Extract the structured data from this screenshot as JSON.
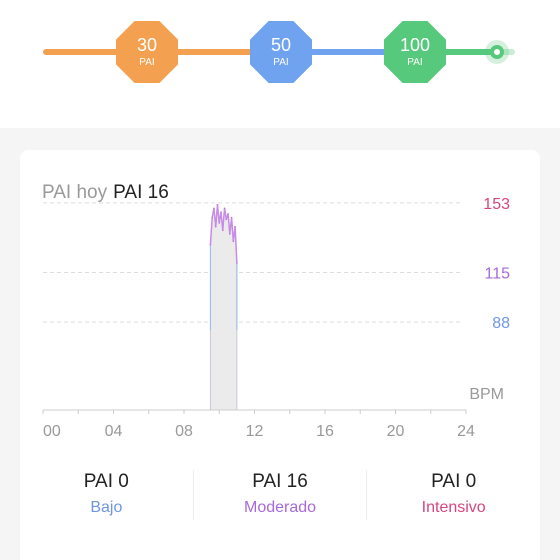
{
  "progress": {
    "milestones": [
      {
        "value": "30",
        "unit": "PAI",
        "color": "#f3a050"
      },
      {
        "value": "50",
        "unit": "PAI",
        "color": "#6fa2ef"
      },
      {
        "value": "100",
        "unit": "PAI",
        "color": "#56c97c"
      }
    ],
    "segment_colors": [
      "#f3a050",
      "#f3a050",
      "#6fa2ef",
      "#56c97c"
    ]
  },
  "card": {
    "title_label": "PAI hoy",
    "title_value": "PAI 16"
  },
  "chart_data": {
    "type": "area",
    "x": [
      9.5,
      9.6,
      9.7,
      9.8,
      9.9,
      10.0,
      10.1,
      10.2,
      10.3,
      10.4,
      10.5,
      10.6,
      10.7,
      10.8,
      10.9,
      11.0
    ],
    "y": [
      130,
      145,
      150,
      140,
      152,
      142,
      148,
      138,
      150,
      144,
      147,
      136,
      145,
      132,
      140,
      120
    ],
    "xticks": [
      "00",
      "04",
      "08",
      "12",
      "16",
      "20",
      "24"
    ],
    "xlim": [
      0,
      24
    ],
    "ylim": [
      40,
      160
    ],
    "unit_label": "BPM",
    "reference_lines": [
      {
        "value": 153,
        "label": "153",
        "color": "#d6467f"
      },
      {
        "value": 115,
        "label": "115",
        "color": "#a86ad9"
      },
      {
        "value": 88,
        "label": "88",
        "color": "#6f97e0"
      }
    ],
    "grid": true
  },
  "stats": [
    {
      "value": "PAI 0",
      "label": "Bajo",
      "color": "#6f97e0"
    },
    {
      "value": "PAI 16",
      "label": "Moderado",
      "color": "#a86ad9"
    },
    {
      "value": "PAI 0",
      "label": "Intensivo",
      "color": "#d6467f"
    }
  ]
}
